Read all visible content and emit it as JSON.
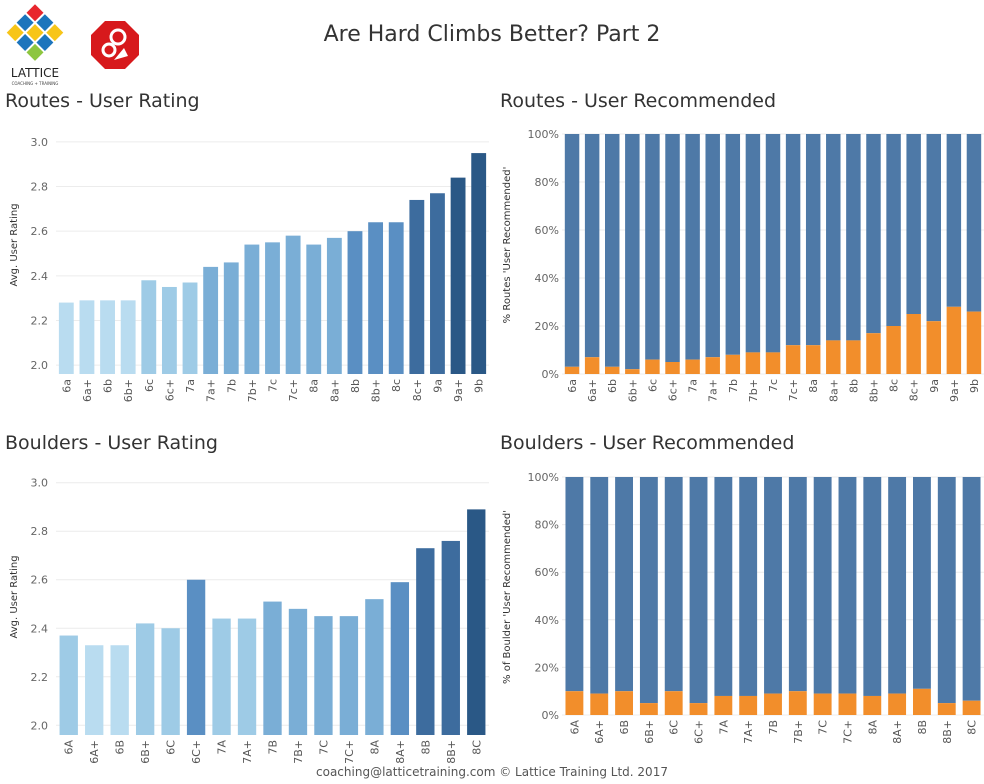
{
  "header": {
    "title": "Are Hard Climbs Better? Part 2",
    "lattice_logo_text": "LATTICE",
    "lattice_logo_subtext": "COACHING + TRAINING"
  },
  "footer": {
    "text": "coaching@latticetraining.com © Lattice Training Ltd. 2017"
  },
  "colors": {
    "blue_dark": "#4e79a7",
    "orange": "#f28e2b",
    "rating_scale": [
      "#b9dcf0",
      "#9ecbe6",
      "#7aaed6",
      "#5a8fc3",
      "#3d6c9e",
      "#2a5886"
    ]
  },
  "chart_data": [
    {
      "id": "routes_rating",
      "type": "bar",
      "title": "Routes - User Rating",
      "ylabel": "Avg. User Rating",
      "xlabel": "",
      "ylim": [
        1.96,
        3.04
      ],
      "yticks": [
        "2.0",
        "2.2",
        "2.4",
        "2.6",
        "2.8",
        "3.0"
      ],
      "categories": [
        "6a",
        "6a+",
        "6b",
        "6b+",
        "6c",
        "6c+",
        "7a",
        "7a+",
        "7b",
        "7b+",
        "7c",
        "7c+",
        "8a",
        "8a+",
        "8b",
        "8b+",
        "8c",
        "8c+",
        "9a",
        "9a+",
        "9b"
      ],
      "values": [
        2.28,
        2.29,
        2.29,
        2.29,
        2.38,
        2.35,
        2.37,
        2.44,
        2.46,
        2.54,
        2.55,
        2.58,
        2.54,
        2.57,
        2.6,
        2.64,
        2.64,
        2.74,
        2.77,
        2.84,
        2.95
      ],
      "color_index": [
        0,
        0,
        0,
        0,
        1,
        1,
        1,
        2,
        2,
        2,
        2,
        2,
        2,
        2,
        3,
        3,
        3,
        4,
        4,
        5,
        5
      ]
    },
    {
      "id": "routes_recommended",
      "type": "bar",
      "stacked": true,
      "title": "Routes - User Recommended",
      "ylabel": "% Routes 'User Recommended'",
      "xlabel": "",
      "ylim": [
        0,
        100
      ],
      "yticks": [
        "0%",
        "20%",
        "40%",
        "60%",
        "80%",
        "100%"
      ],
      "categories": [
        "6a",
        "6a+",
        "6b",
        "6b+",
        "6c",
        "6c+",
        "7a",
        "7a+",
        "7b",
        "7b+",
        "7c",
        "7c+",
        "8a",
        "8a+",
        "8b",
        "8b+",
        "8c",
        "8c+",
        "9a",
        "9a+",
        "9b"
      ],
      "series": [
        {
          "values": [
            3,
            7,
            3,
            2,
            6,
            5,
            6,
            7,
            8,
            9,
            9,
            12,
            12,
            14,
            14,
            17,
            20,
            25,
            22,
            28,
            26
          ]
        },
        {
          "values": [
            97,
            93,
            97,
            98,
            94,
            95,
            94,
            93,
            92,
            91,
            91,
            88,
            88,
            86,
            86,
            83,
            80,
            75,
            78,
            72,
            74
          ]
        }
      ]
    },
    {
      "id": "boulders_rating",
      "type": "bar",
      "title": "Boulders - User Rating",
      "ylabel": "Avg. User Rating",
      "xlabel": "",
      "ylim": [
        1.96,
        3.04
      ],
      "yticks": [
        "2.0",
        "2.2",
        "2.4",
        "2.6",
        "2.8",
        "3.0"
      ],
      "categories": [
        "6A",
        "6A+",
        "6B",
        "6B+",
        "6C",
        "6C+",
        "7A",
        "7A+",
        "7B",
        "7B+",
        "7C",
        "7C+",
        "8A",
        "8A+",
        "8B",
        "8B+",
        "8C"
      ],
      "values": [
        2.37,
        2.33,
        2.33,
        2.42,
        2.4,
        2.6,
        2.44,
        2.44,
        2.51,
        2.48,
        2.45,
        2.45,
        2.52,
        2.59,
        2.73,
        2.76,
        2.89
      ],
      "color_index": [
        1,
        0,
        0,
        1,
        1,
        3,
        1,
        1,
        2,
        2,
        2,
        2,
        2,
        3,
        4,
        4,
        5
      ]
    },
    {
      "id": "boulders_recommended",
      "type": "bar",
      "stacked": true,
      "title": "Boulders - User Recommended",
      "ylabel": "% of Boulder 'User Recommended'",
      "xlabel": "",
      "ylim": [
        0,
        100
      ],
      "yticks": [
        "0%",
        "20%",
        "40%",
        "60%",
        "80%",
        "100%"
      ],
      "categories": [
        "6A",
        "6A+",
        "6B",
        "6B+",
        "6C",
        "6C+",
        "7A",
        "7A+",
        "7B",
        "7B+",
        "7C",
        "7C+",
        "8A",
        "8A+",
        "8B",
        "8B+",
        "8C"
      ],
      "series": [
        {
          "values": [
            10,
            9,
            10,
            5,
            10,
            5,
            8,
            8,
            9,
            10,
            9,
            9,
            8,
            9,
            11,
            5,
            6
          ]
        },
        {
          "values": [
            90,
            91,
            90,
            95,
            90,
            95,
            92,
            92,
            91,
            90,
            91,
            91,
            92,
            91,
            89,
            95,
            94
          ]
        }
      ]
    }
  ]
}
